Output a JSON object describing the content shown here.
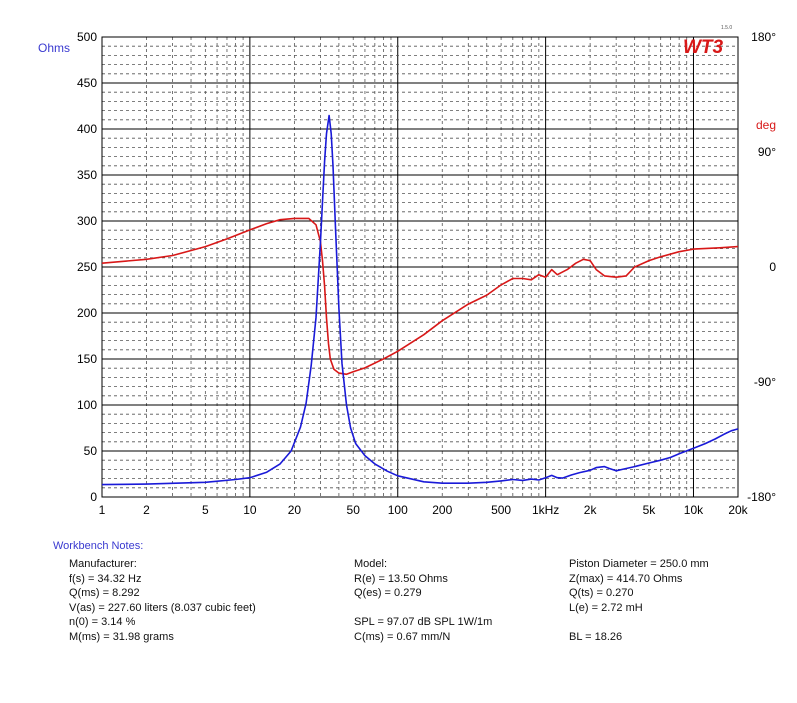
{
  "chart_data": {
    "type": "line",
    "x_scale": "log",
    "xlim": [
      1,
      20000
    ],
    "x_ticks": [
      {
        "value": 1,
        "label": "1"
      },
      {
        "value": 2,
        "label": "2"
      },
      {
        "value": 5,
        "label": "5"
      },
      {
        "value": 10,
        "label": "10"
      },
      {
        "value": 20,
        "label": "20"
      },
      {
        "value": 50,
        "label": "50"
      },
      {
        "value": 100,
        "label": "100"
      },
      {
        "value": 200,
        "label": "200"
      },
      {
        "value": 500,
        "label": "500"
      },
      {
        "value": 1000,
        "label": "1kHz"
      },
      {
        "value": 2000,
        "label": "2k"
      },
      {
        "value": 5000,
        "label": "5k"
      },
      {
        "value": 10000,
        "label": "10k"
      },
      {
        "value": 20000,
        "label": "20k"
      }
    ],
    "y_left": {
      "label": "Ohms",
      "range": [
        0,
        500
      ],
      "ticks": [
        0,
        50,
        100,
        150,
        200,
        250,
        300,
        350,
        400,
        450,
        500
      ]
    },
    "y_right": {
      "label": "deg",
      "range": [
        -180,
        180
      ],
      "ticks": [
        {
          "value": 180,
          "label": "180°"
        },
        {
          "value": 90,
          "label": "90°"
        },
        {
          "value": 0,
          "label": "0"
        },
        {
          "value": -90,
          "label": "-90°"
        },
        {
          "value": -180,
          "label": "-180°"
        }
      ]
    },
    "grid": true,
    "series": [
      {
        "axis": "left",
        "color": "#1a1ad8",
        "points": [
          [
            1,
            13.5
          ],
          [
            2,
            14
          ],
          [
            5,
            16
          ],
          [
            8,
            19
          ],
          [
            10,
            21
          ],
          [
            13,
            27
          ],
          [
            16,
            36
          ],
          [
            19,
            50
          ],
          [
            22,
            76
          ],
          [
            24,
            102
          ],
          [
            26,
            143
          ],
          [
            28,
            195
          ],
          [
            30,
            276
          ],
          [
            31,
            321
          ],
          [
            32,
            365
          ],
          [
            33,
            395
          ],
          [
            34.32,
            414.7
          ],
          [
            35.5,
            395
          ],
          [
            36.5,
            360
          ],
          [
            38,
            290
          ],
          [
            40,
            205
          ],
          [
            42,
            145
          ],
          [
            45,
            100
          ],
          [
            48,
            75
          ],
          [
            52,
            58
          ],
          [
            60,
            45
          ],
          [
            70,
            36
          ],
          [
            85,
            28
          ],
          [
            100,
            23
          ],
          [
            150,
            16.5
          ],
          [
            200,
            15
          ],
          [
            300,
            15
          ],
          [
            400,
            16
          ],
          [
            500,
            17.5
          ],
          [
            600,
            19
          ],
          [
            700,
            18
          ],
          [
            800,
            19.5
          ],
          [
            900,
            18.5
          ],
          [
            1000,
            21
          ],
          [
            1100,
            23.5
          ],
          [
            1200,
            21
          ],
          [
            1300,
            20.5
          ],
          [
            1500,
            24
          ],
          [
            1700,
            26.5
          ],
          [
            2000,
            29
          ],
          [
            2200,
            32
          ],
          [
            2500,
            33
          ],
          [
            2700,
            31
          ],
          [
            3000,
            28.5
          ],
          [
            3300,
            30
          ],
          [
            4000,
            33
          ],
          [
            5000,
            37
          ],
          [
            6000,
            40
          ],
          [
            7000,
            43
          ],
          [
            8000,
            47
          ],
          [
            10000,
            53
          ],
          [
            12000,
            58
          ],
          [
            14000,
            63
          ],
          [
            16000,
            68
          ],
          [
            18000,
            72
          ],
          [
            20000,
            74
          ]
        ]
      },
      {
        "axis": "right",
        "color": "#d81818",
        "points": [
          [
            1,
            3
          ],
          [
            2,
            6
          ],
          [
            3,
            9
          ],
          [
            5,
            16
          ],
          [
            7,
            22
          ],
          [
            10,
            29
          ],
          [
            13,
            34
          ],
          [
            16,
            37
          ],
          [
            20,
            38
          ],
          [
            25,
            38
          ],
          [
            28,
            33
          ],
          [
            30,
            20
          ],
          [
            31,
            5
          ],
          [
            32,
            -15
          ],
          [
            33,
            -40
          ],
          [
            34,
            -60
          ],
          [
            35,
            -72
          ],
          [
            37,
            -80
          ],
          [
            40,
            -83
          ],
          [
            45,
            -84
          ],
          [
            50,
            -82
          ],
          [
            60,
            -79
          ],
          [
            80,
            -72
          ],
          [
            100,
            -66
          ],
          [
            150,
            -53
          ],
          [
            200,
            -42
          ],
          [
            300,
            -29
          ],
          [
            400,
            -22
          ],
          [
            500,
            -14
          ],
          [
            600,
            -9
          ],
          [
            700,
            -9
          ],
          [
            800,
            -10
          ],
          [
            900,
            -6
          ],
          [
            1000,
            -8
          ],
          [
            1100,
            -2
          ],
          [
            1200,
            -6
          ],
          [
            1400,
            -2
          ],
          [
            1600,
            3
          ],
          [
            1800,
            6
          ],
          [
            2000,
            5
          ],
          [
            2200,
            -2
          ],
          [
            2500,
            -7
          ],
          [
            3000,
            -8
          ],
          [
            3500,
            -7
          ],
          [
            4000,
            0
          ],
          [
            5000,
            5
          ],
          [
            6000,
            8
          ],
          [
            8000,
            12
          ],
          [
            10000,
            14
          ],
          [
            15000,
            15
          ],
          [
            20000,
            16
          ]
        ]
      }
    ]
  },
  "logo": {
    "text": "WT3",
    "version": "1.5.0",
    "color": "#d81818"
  },
  "notes": {
    "title": "Workbench Notes:",
    "col1": [
      "Manufacturer:",
      "f(s) = 34.32 Hz",
      "Q(ms) = 8.292",
      "V(as) = 227.60 liters  (8.037 cubic feet)",
      "n(0) = 3.14 %",
      "M(ms) = 31.98 grams"
    ],
    "col2": [
      "Model:",
      "R(e) = 13.50 Ohms",
      "Q(es) = 0.279",
      "",
      "SPL = 97.07 dB SPL 1W/1m",
      "C(ms) = 0.67 mm/N"
    ],
    "col3": [
      "Piston Diameter = 250.0 mm",
      "Z(max) = 414.70 Ohms",
      "Q(ts) = 0.270",
      "L(e) = 2.72 mH",
      "",
      "BL = 18.26"
    ]
  }
}
